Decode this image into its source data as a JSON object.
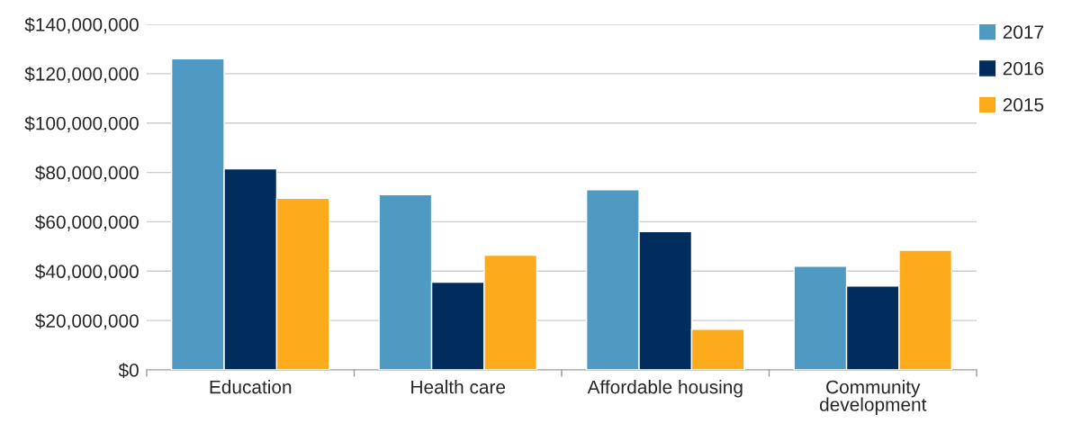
{
  "chart_data": {
    "type": "bar",
    "categories": [
      "Education",
      "Health care",
      "Affordable housing",
      "Community development"
    ],
    "series": [
      {
        "name": "2017",
        "color": "#4f9ac3",
        "values": [
          126000000,
          71000000,
          73000000,
          42000000
        ]
      },
      {
        "name": "2016",
        "color": "#002d5c",
        "values": [
          81500000,
          35500000,
          56000000,
          34000000
        ]
      },
      {
        "name": "2015",
        "color": "#fdab1b",
        "values": [
          69500000,
          46500000,
          16500000,
          48500000
        ]
      }
    ],
    "ylim": [
      0,
      140000000
    ],
    "yticks": [
      {
        "value": 0,
        "label": "$0"
      },
      {
        "value": 20000000,
        "label": "$20,000,000"
      },
      {
        "value": 40000000,
        "label": "$40,000,000"
      },
      {
        "value": 60000000,
        "label": "$60,000,000"
      },
      {
        "value": 80000000,
        "label": "$80,000,000"
      },
      {
        "value": 100000000,
        "label": "$100,000,000"
      },
      {
        "value": 120000000,
        "label": "$120,000,000"
      },
      {
        "value": 140000000,
        "label": "$140,000,000"
      }
    ],
    "grid": "y",
    "legend": "top right"
  }
}
